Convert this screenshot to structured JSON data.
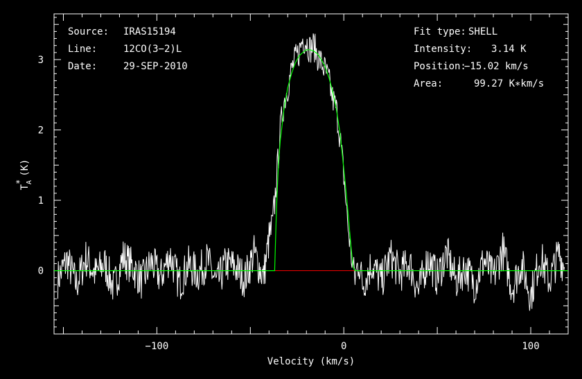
{
  "chart_data": {
    "type": "line",
    "xlabel": "Velocity (km/s)",
    "ylabel": "TA* (K)",
    "ylabel_main": "T",
    "ylabel_sub": "A",
    "ylabel_sup": "*",
    "ylabel_unit": "(K)",
    "xlim": [
      -155,
      120
    ],
    "ylim": [
      -0.9,
      3.65
    ],
    "xticks": [
      -100,
      0,
      100
    ],
    "xtick_labels": [
      "−100",
      "0",
      "100"
    ],
    "yticks": [
      0,
      1,
      2,
      3
    ],
    "ytick_labels": [
      "0",
      "1",
      "2",
      "3"
    ],
    "grid": false,
    "colors": {
      "background": "#000000",
      "spectrum": "#ffffff",
      "fit": "#00ff00",
      "baseline": "#ff0000",
      "axes": "#ffffff"
    },
    "annotations_left": [
      {
        "label": "Source:",
        "value": "IRAS15194"
      },
      {
        "label": "Line:",
        "value": "12CO(3−2)L"
      },
      {
        "label": "Date:",
        "value": "29-SEP-2010"
      }
    ],
    "annotations_right": [
      {
        "label": "Fit type:",
        "value": "SHELL"
      },
      {
        "label": "Intensity:",
        "value": "3.14 K"
      },
      {
        "label": "Position:",
        "value": "−15.02 km/s"
      },
      {
        "label": "Area:",
        "value": "99.27 K∗km/s"
      }
    ],
    "series": [
      {
        "name": "spectrum",
        "x": [
          -153,
          -148,
          -143,
          -138,
          -133,
          -128,
          -123,
          -118,
          -113,
          -108,
          -103,
          -98,
          -93,
          -88,
          -83,
          -78,
          -73,
          -68,
          -63,
          -58,
          -53,
          -48,
          -43,
          -40,
          -38,
          -36,
          -34,
          -32,
          -30,
          -28,
          -26,
          -24,
          -22,
          -20,
          -18,
          -16,
          -14,
          -12,
          -10,
          -8,
          -6,
          -4,
          -2,
          0,
          2,
          4,
          6,
          8,
          10,
          15,
          20,
          25,
          30,
          35,
          40,
          45,
          50,
          55,
          60,
          65,
          70,
          75,
          80,
          85,
          90,
          95,
          100,
          105,
          110,
          115,
          118
        ],
        "y": [
          -0.12,
          0.15,
          -0.2,
          0.18,
          -0.05,
          0.1,
          -0.25,
          0.2,
          0.05,
          -0.15,
          0.12,
          -0.1,
          0.22,
          -0.18,
          0.08,
          -0.05,
          0.15,
          -0.2,
          0.1,
          0.05,
          -0.12,
          0.25,
          -0.1,
          0.45,
          0.65,
          1.3,
          2.0,
          2.4,
          2.6,
          2.85,
          3.0,
          3.1,
          3.3,
          3.25,
          3.15,
          3.2,
          3.05,
          2.95,
          2.85,
          2.7,
          2.45,
          2.3,
          1.9,
          1.35,
          0.7,
          0.2,
          -0.1,
          0.15,
          -0.2,
          0.1,
          -0.15,
          0.2,
          -0.05,
          0.12,
          -0.3,
          0.18,
          -0.1,
          0.25,
          -0.15,
          0.05,
          -0.2,
          0.15,
          -0.1,
          0.3,
          -0.25,
          0.1,
          -0.35,
          0.2,
          -0.15,
          0.25,
          0.05
        ]
      },
      {
        "name": "fit",
        "x": [
          -155,
          -37,
          -36,
          -35,
          -34,
          -32,
          -30,
          -28,
          -26,
          -24,
          -22,
          -20,
          -18,
          -16,
          -14,
          -12,
          -10,
          -8,
          -6,
          -4,
          -2,
          0,
          2,
          4,
          5,
          6,
          120
        ],
        "y": [
          0,
          0,
          0.9,
          1.5,
          1.85,
          2.3,
          2.6,
          2.8,
          2.95,
          3.05,
          3.1,
          3.14,
          3.14,
          3.12,
          3.08,
          3.0,
          2.9,
          2.75,
          2.55,
          2.3,
          1.95,
          1.45,
          0.9,
          0.3,
          0.05,
          0,
          0
        ]
      },
      {
        "name": "baseline",
        "x": [
          -37,
          6
        ],
        "y": [
          0,
          0
        ]
      }
    ]
  }
}
